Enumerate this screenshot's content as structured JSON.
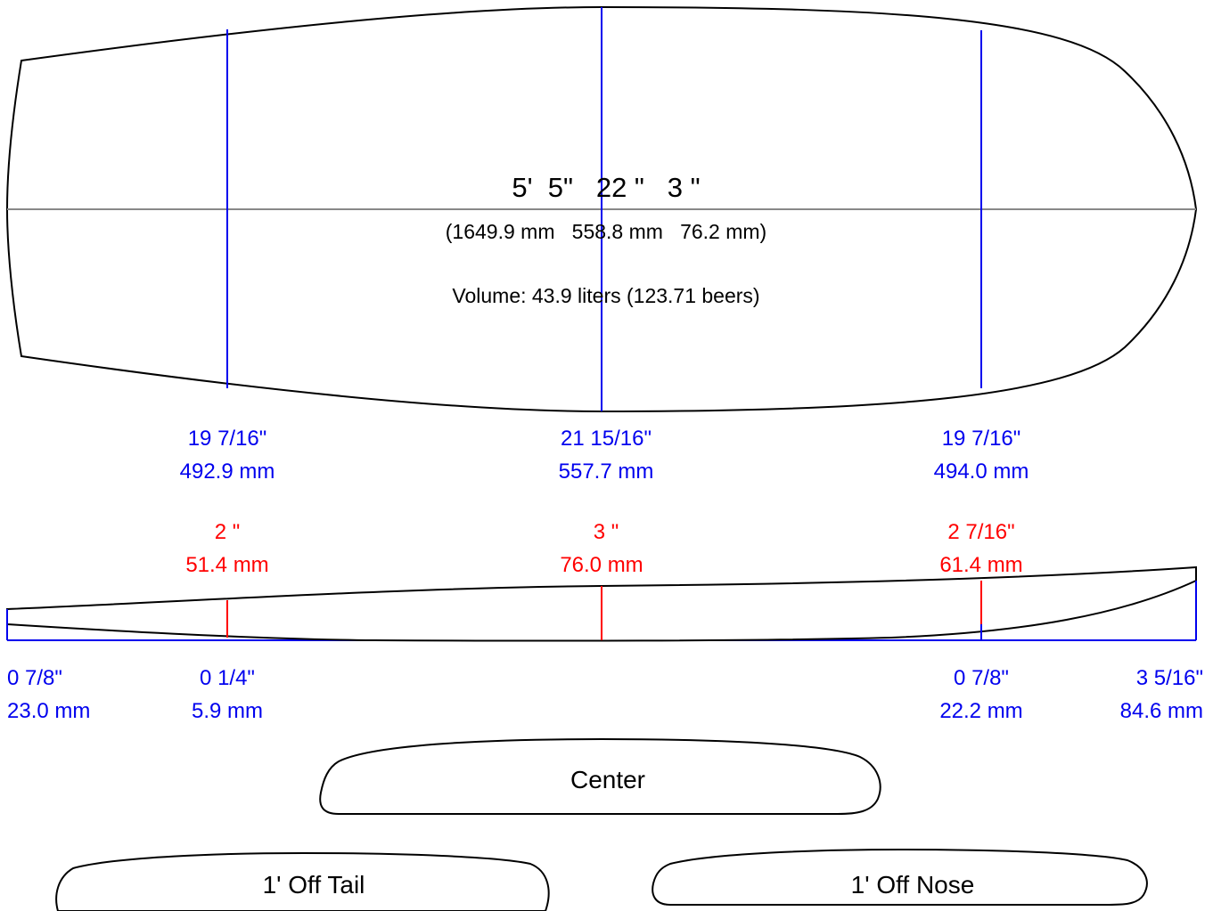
{
  "dimensions": {
    "imperial": "5'  5\"   22 \"   3 \"",
    "metric": "(1649.9 mm   558.8 mm   76.2 mm)",
    "volume": "Volume: 43.9 liters (123.71 beers)"
  },
  "widths": [
    {
      "inches": "19 7/16\"",
      "mm": "492.9 mm"
    },
    {
      "inches": "21 15/16\"",
      "mm": "557.7 mm"
    },
    {
      "inches": "19 7/16\"",
      "mm": "494.0 mm"
    }
  ],
  "thickness": [
    {
      "inches": "2 \"",
      "mm": "51.4 mm"
    },
    {
      "inches": "3 \"",
      "mm": "76.0 mm"
    },
    {
      "inches": "2 7/16\"",
      "mm": "61.4 mm"
    }
  ],
  "rocker": [
    {
      "inches": "0 7/8\"",
      "mm": "23.0 mm"
    },
    {
      "inches": "0 1/4\"",
      "mm": "5.9 mm"
    },
    {
      "inches": "0 7/8\"",
      "mm": "22.2 mm"
    },
    {
      "inches": "3 5/16\"",
      "mm": "84.6 mm"
    }
  ],
  "rails": {
    "center": "Center",
    "tail": "1' Off Tail",
    "nose": "1' Off Nose"
  },
  "colors": {
    "width_lines": "#0000ee",
    "thickness_lines": "#ff0000",
    "centerline": "#888888",
    "outline": "#000000"
  }
}
